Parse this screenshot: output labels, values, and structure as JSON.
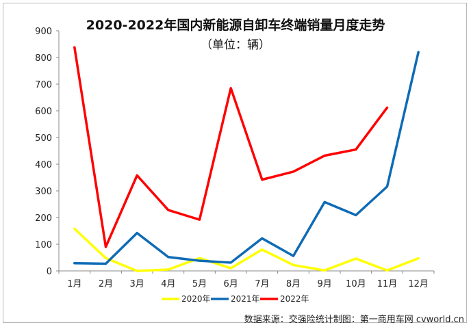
{
  "chart_data": {
    "type": "line",
    "title": "2020-2022年国内新能源自卸车终端销量月度走势",
    "subtitle": "（单位：辆）",
    "categories": [
      "1月",
      "2月",
      "3月",
      "4月",
      "5月",
      "6月",
      "7月",
      "8月",
      "9月",
      "10月",
      "11月",
      "12月"
    ],
    "ylim": [
      0,
      900
    ],
    "yticks": [
      0,
      100,
      200,
      300,
      400,
      500,
      600,
      700,
      800,
      900
    ],
    "grid": false,
    "legend_position": "bottom",
    "series": [
      {
        "name": "2020年",
        "color": "#ffff00",
        "values": [
          158,
          48,
          0,
          5,
          48,
          10,
          80,
          22,
          2,
          46,
          2,
          47
        ]
      },
      {
        "name": "2021年",
        "color": "#0e6bb5",
        "values": [
          29,
          27,
          142,
          52,
          38,
          31,
          122,
          56,
          258,
          209,
          316,
          820
        ]
      },
      {
        "name": "2022年",
        "color": "#ff0000",
        "values": [
          838,
          90,
          358,
          228,
          192,
          685,
          342,
          372,
          432,
          455,
          612,
          null
        ]
      }
    ]
  },
  "source_text": "数据来源：交强险统计制图：第一商用车网 cvworld.cn"
}
